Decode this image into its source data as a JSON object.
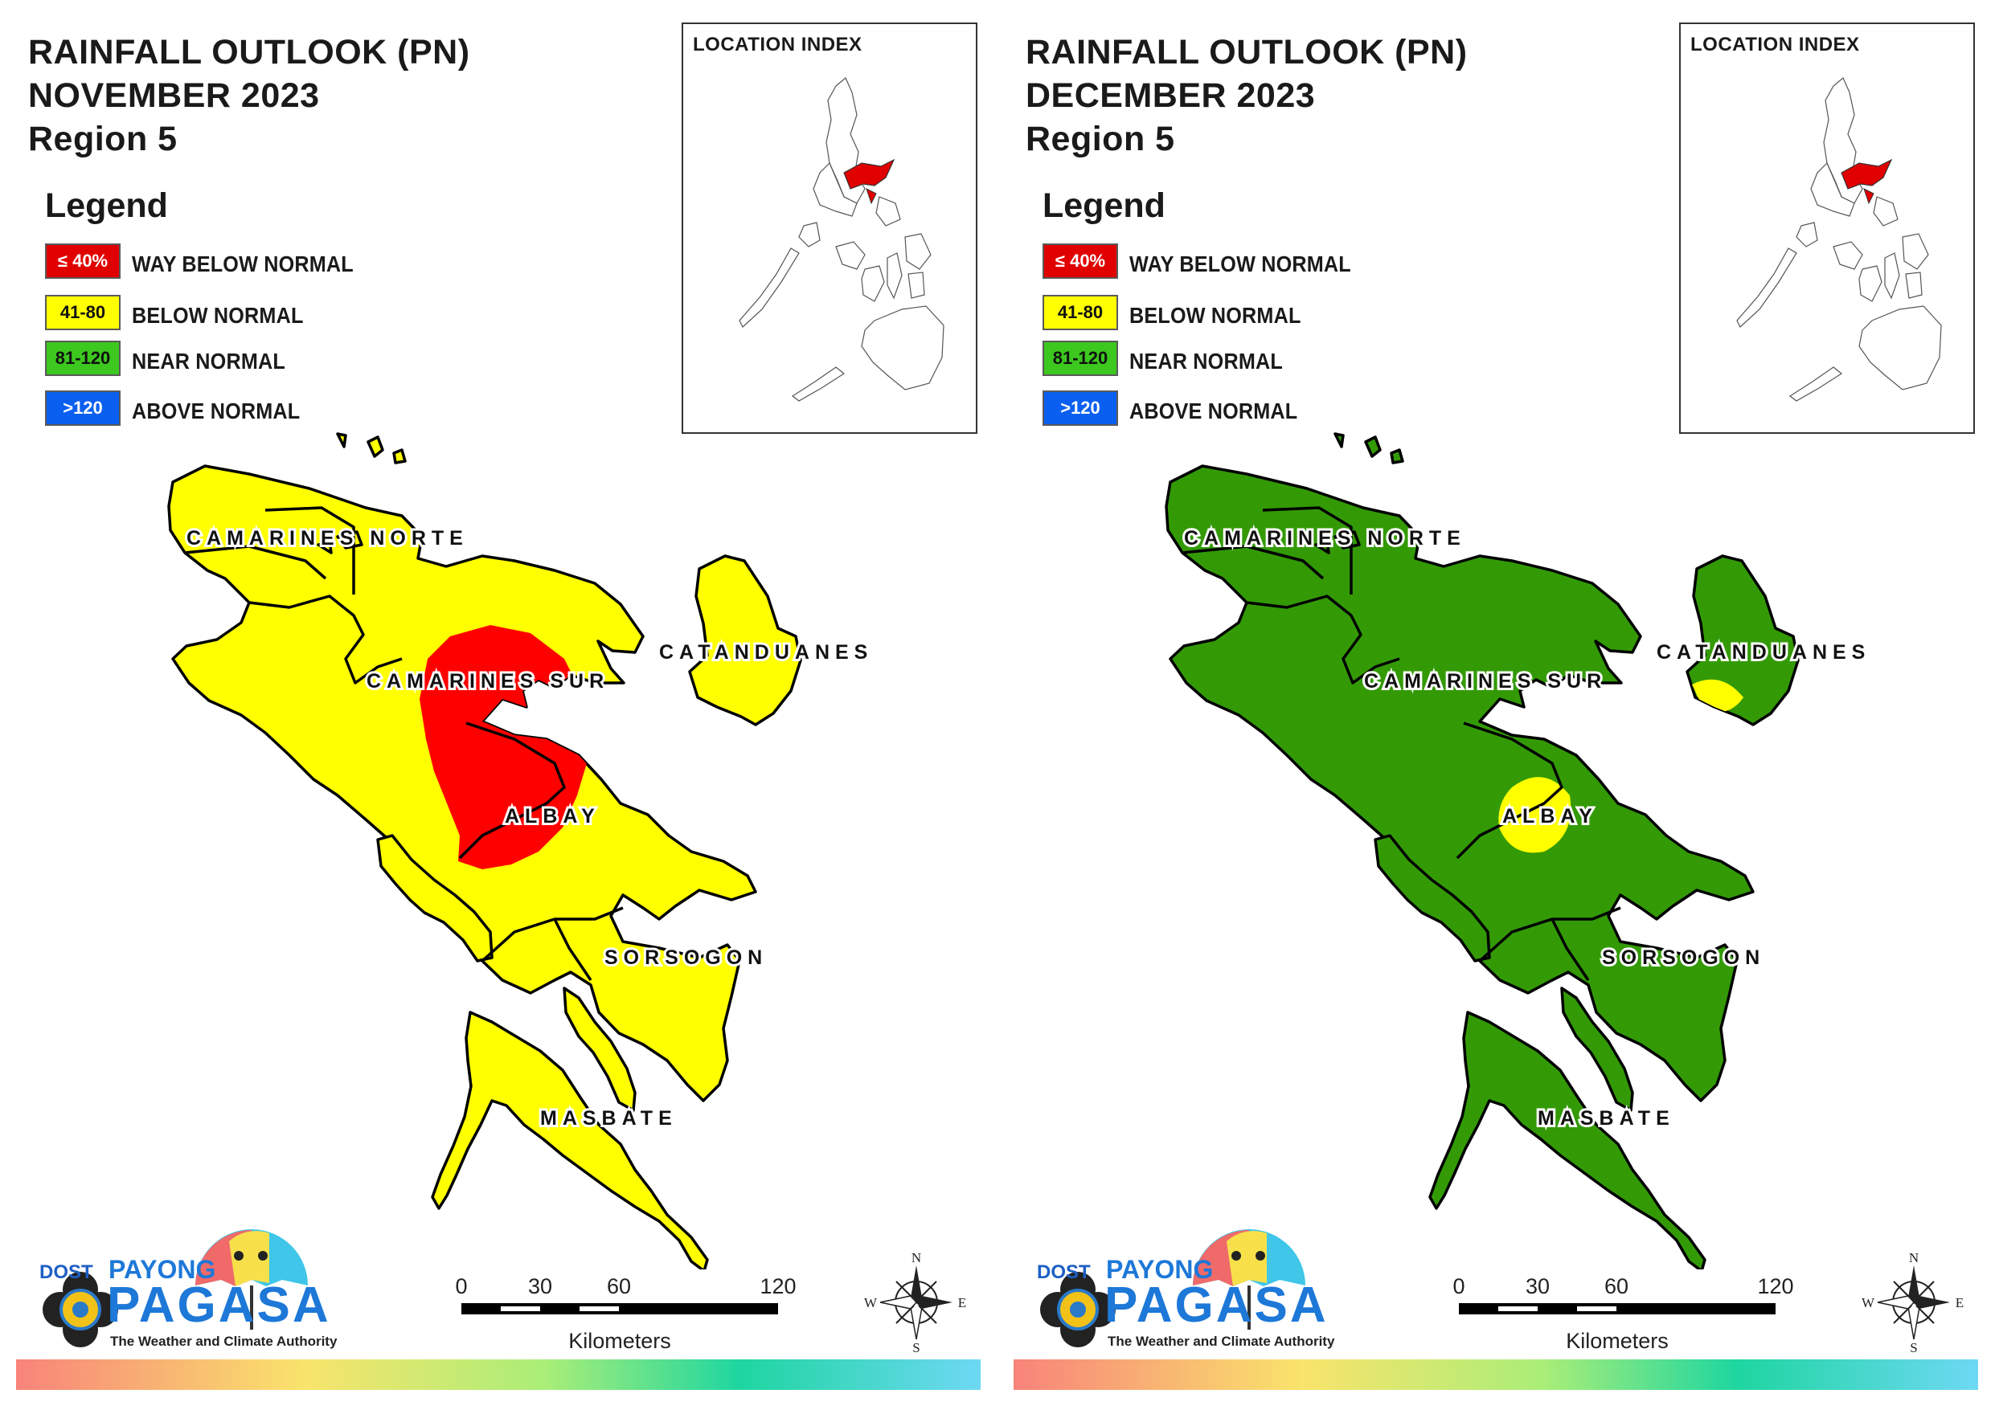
{
  "panels": [
    {
      "title_line1": "RAINFALL OUTLOOK (PN)",
      "title_line2": "NOVEMBER 2023",
      "title_line3": "Region 5",
      "legend_title": "Legend",
      "legend": [
        {
          "range": "≤ 40%",
          "label": "WAY BELOW NORMAL",
          "color": "#e00000",
          "text_color": "#ffffff"
        },
        {
          "range": "41-80",
          "label": "BELOW NORMAL",
          "color": "#ffff00",
          "text_color": "#111111"
        },
        {
          "range": "81-120",
          "label": "NEAR NORMAL",
          "color": "#3cc81e",
          "text_color": "#111111"
        },
        {
          "range": ">120",
          "label": "ABOVE NORMAL",
          "color": "#0a5ff0",
          "text_color": "#ffffff"
        }
      ],
      "index_title": "LOCATION INDEX",
      "base_fill": "#ffff00",
      "spots": [
        {
          "kind": "large",
          "fill": "#ff0000"
        }
      ],
      "provinces": {
        "camarines_norte": "CAMARINES NORTE",
        "camarines_sur": "CAMARINES SUR",
        "catanduanes": "CATANDUANES",
        "albay": "ALBAY",
        "sorsogon": "SORSOGON",
        "masbate": "MASBATE"
      },
      "scale": {
        "t0": "0",
        "t1": "30",
        "t2": "60",
        "t3": "120",
        "unit": "Kilometers"
      },
      "compass": {
        "n": "N",
        "e": "E",
        "s": "S",
        "w": "W"
      },
      "logo": {
        "dost": "DOST",
        "payong": "PAYONG",
        "pagasa": "PAGASA",
        "tagline": "The Weather and Climate Authority"
      }
    },
    {
      "title_line1": "RAINFALL OUTLOOK (PN)",
      "title_line2": "DECEMBER 2023",
      "title_line3": "Region 5",
      "legend_title": "Legend",
      "legend": [
        {
          "range": "≤ 40%",
          "label": "WAY BELOW NORMAL",
          "color": "#e00000",
          "text_color": "#ffffff"
        },
        {
          "range": "41-80",
          "label": "BELOW NORMAL",
          "color": "#ffff00",
          "text_color": "#111111"
        },
        {
          "range": "81-120",
          "label": "NEAR NORMAL",
          "color": "#3cc81e",
          "text_color": "#111111"
        },
        {
          "range": ">120",
          "label": "ABOVE NORMAL",
          "color": "#0a5ff0",
          "text_color": "#ffffff"
        }
      ],
      "index_title": "LOCATION INDEX",
      "base_fill": "#339a06",
      "spots": [
        {
          "kind": "albay",
          "fill": "#ffff00"
        },
        {
          "kind": "catanduanes",
          "fill": "#ffff00"
        }
      ],
      "provinces": {
        "camarines_norte": "CAMARINES NORTE",
        "camarines_sur": "CAMARINES SUR",
        "catanduanes": "CATANDUANES",
        "albay": "ALBAY",
        "sorsogon": "SORSOGON",
        "masbate": "MASBATE"
      },
      "scale": {
        "t0": "0",
        "t1": "30",
        "t2": "60",
        "t3": "120",
        "unit": "Kilometers"
      },
      "compass": {
        "n": "N",
        "e": "E",
        "s": "S",
        "w": "W"
      },
      "logo": {
        "dost": "DOST",
        "payong": "PAYONG",
        "pagasa": "PAGASA",
        "tagline": "The Weather and Climate Authority"
      }
    }
  ]
}
